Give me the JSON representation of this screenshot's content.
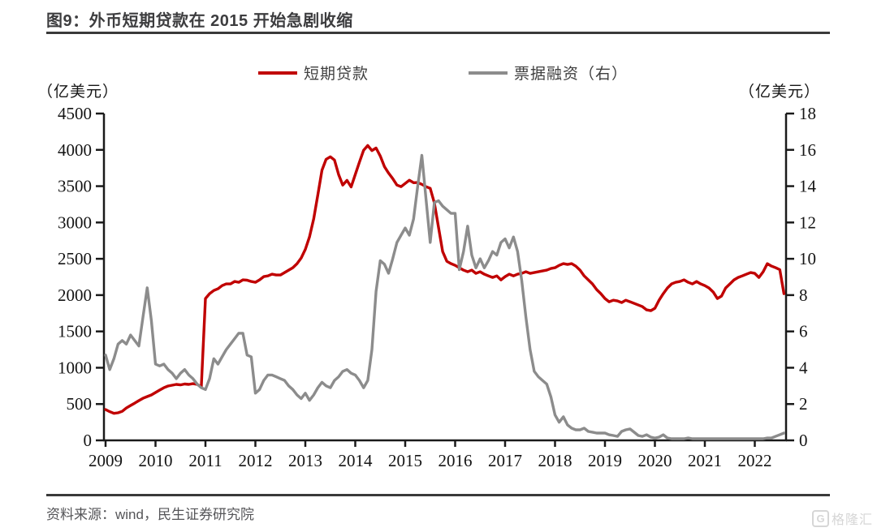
{
  "title": "图9：外币短期贷款在 2015 开始急剧收缩",
  "legend": [
    {
      "label": "短期贷款",
      "color": "#C00000"
    },
    {
      "label": "票据融资（右）",
      "color": "#8C8C8C"
    }
  ],
  "left_axis_unit": "（亿美元）",
  "right_axis_unit": "（亿美元）",
  "source": "资料来源：wind，民生证券研究院",
  "logo": {
    "icon": "G",
    "text": "格隆汇"
  },
  "colors": {
    "red_series": "#C00000",
    "gray_series": "#8C8C8C",
    "axis": "#1a1a1a"
  },
  "chart_data": {
    "type": "line",
    "title": "外币短期贷款在 2015 开始急剧收缩",
    "x_start": "2009-01",
    "x_frequency": "monthly",
    "x_tick_labels": [
      "2009",
      "2010",
      "2011",
      "2012",
      "2013",
      "2014",
      "2015",
      "2016",
      "2017",
      "2018",
      "2019",
      "2020",
      "2021",
      "2022"
    ],
    "left_axis": {
      "label": "（亿美元）",
      "min": 0,
      "max": 4500,
      "ticks": [
        0,
        500,
        1000,
        1500,
        2000,
        2500,
        3000,
        3500,
        4000,
        4500
      ]
    },
    "right_axis": {
      "label": "（亿美元）",
      "min": 0,
      "max": 18,
      "ticks": [
        0,
        2,
        4,
        6,
        8,
        10,
        12,
        14,
        16,
        18
      ]
    },
    "legend_position": "top",
    "grid": false,
    "series": [
      {
        "id": "short-term-loans",
        "name": "短期贷款",
        "axis": "left",
        "color": "#C00000",
        "values": [
          424,
          395,
          372,
          380,
          400,
          445,
          480,
          513,
          547,
          580,
          603,
          625,
          659,
          692,
          725,
          748,
          759,
          770,
          764,
          776,
          770,
          780,
          772,
          736,
          1953,
          2020,
          2064,
          2087,
          2131,
          2154,
          2154,
          2187,
          2176,
          2210,
          2205,
          2187,
          2176,
          2210,
          2254,
          2265,
          2288,
          2277,
          2277,
          2310,
          2344,
          2377,
          2433,
          2511,
          2630,
          2800,
          3050,
          3380,
          3720,
          3870,
          3905,
          3860,
          3660,
          3515,
          3580,
          3490,
          3660,
          3830,
          3995,
          4060,
          3990,
          4025,
          3915,
          3770,
          3680,
          3605,
          3515,
          3493,
          3537,
          3582,
          3548,
          3550,
          3525,
          3493,
          3470,
          3270,
          2935,
          2600,
          2466,
          2433,
          2410,
          2377,
          2344,
          2322,
          2344,
          2299,
          2322,
          2288,
          2265,
          2243,
          2265,
          2210,
          2254,
          2288,
          2265,
          2288,
          2299,
          2322,
          2299,
          2310,
          2322,
          2333,
          2344,
          2366,
          2377,
          2410,
          2433,
          2422,
          2433,
          2399,
          2344,
          2265,
          2210,
          2154,
          2076,
          2020,
          1953,
          1908,
          1930,
          1919,
          1897,
          1930,
          1908,
          1886,
          1864,
          1841,
          1797,
          1786,
          1819,
          1930,
          2020,
          2098,
          2154,
          2176,
          2187,
          2210,
          2176,
          2154,
          2187,
          2154,
          2131,
          2098,
          2042,
          1953,
          1986,
          2098,
          2154,
          2210,
          2243,
          2265,
          2288,
          2310,
          2299,
          2243,
          2322,
          2433,
          2400,
          2377,
          2350,
          2020
        ]
      },
      {
        "id": "bill-financing",
        "name": "票据融资（右）",
        "axis": "right",
        "color": "#8C8C8C",
        "values": [
          4.7,
          3.9,
          4.5,
          5.3,
          5.5,
          5.3,
          5.8,
          5.5,
          5.2,
          6.8,
          8.4,
          6.6,
          4.2,
          4.1,
          4.2,
          3.9,
          3.7,
          3.4,
          3.7,
          3.9,
          3.6,
          3.4,
          3.1,
          2.9,
          2.8,
          3.4,
          4.5,
          4.2,
          4.6,
          5.0,
          5.3,
          5.6,
          5.9,
          5.9,
          4.7,
          4.6,
          2.6,
          2.8,
          3.3,
          3.6,
          3.6,
          3.5,
          3.4,
          3.3,
          3.0,
          2.8,
          2.5,
          2.3,
          2.6,
          2.2,
          2.5,
          2.9,
          3.2,
          3.0,
          2.9,
          3.3,
          3.5,
          3.8,
          3.9,
          3.7,
          3.6,
          3.3,
          2.9,
          3.3,
          5.0,
          8.2,
          9.9,
          9.7,
          9.2,
          10.0,
          10.9,
          11.3,
          11.7,
          11.3,
          12.2,
          14.0,
          15.7,
          13.3,
          10.9,
          13.1,
          13.2,
          12.9,
          12.7,
          12.5,
          12.5,
          9.4,
          10.4,
          11.8,
          10.2,
          9.5,
          10.0,
          9.5,
          9.9,
          10.4,
          10.2,
          10.9,
          11.1,
          10.6,
          11.2,
          10.4,
          8.8,
          6.8,
          5.0,
          3.8,
          3.5,
          3.3,
          3.1,
          2.4,
          1.4,
          1.0,
          1.3,
          0.85,
          0.67,
          0.58,
          0.58,
          0.67,
          0.49,
          0.45,
          0.4,
          0.4,
          0.4,
          0.31,
          0.27,
          0.22,
          0.49,
          0.58,
          0.63,
          0.45,
          0.27,
          0.22,
          0.31,
          0.18,
          0.13,
          0.18,
          0.31,
          0.13,
          0.09,
          0.09,
          0.09,
          0.09,
          0.13,
          0.09,
          0.09,
          0.09,
          0.09,
          0.09,
          0.09,
          0.09,
          0.09,
          0.09,
          0.09,
          0.09,
          0.09,
          0.09,
          0.09,
          0.09,
          0.09,
          0.09,
          0.09,
          0.13,
          0.13,
          0.22,
          0.31,
          0.4
        ]
      }
    ]
  }
}
